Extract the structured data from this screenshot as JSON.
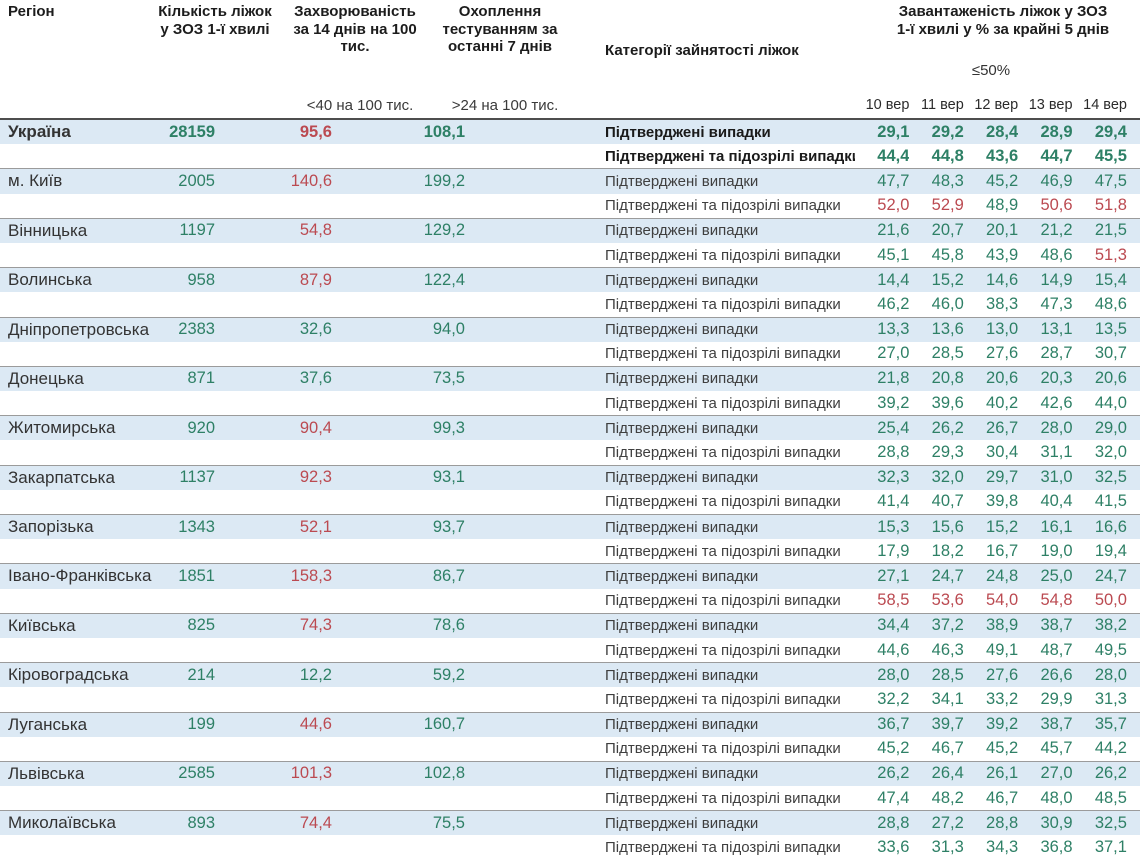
{
  "header": {
    "region": "Регіон",
    "beds": "Кількість ліжок у ЗОЗ 1-ї хвилі",
    "incidence": "Захворюваність за 14 днів на 100 тис.",
    "testing": "Охоплення тестуванням за останні 7 днів",
    "categories": "Категорії зайнятості ліжок",
    "load_line1": "Завантаженість ліжок у ЗОЗ",
    "load_line2": "1-ї хвилі у % за крайні 5 днів",
    "incidence_threshold": "<40 на 100 тис.",
    "testing_threshold": ">24 на 100 тис.",
    "load_threshold": "≤50%",
    "dates": [
      "10 вер",
      "11 вер",
      "12 вер",
      "13 вер",
      "14 вер"
    ]
  },
  "row_labels": {
    "confirmed": "Підтверджені випадки",
    "confirmed_suspected": "Підтверджені та підозрілі випадки"
  },
  "colors": {
    "green": "#2e8066",
    "red": "#bb4a51",
    "band": "#dce9f4"
  },
  "regions": [
    {
      "name": "Україна",
      "bold": true,
      "beds": "28159",
      "incidence": "95,6",
      "incidence_color": "r",
      "testing": "108,1",
      "confirmed": [
        "29,1",
        "29,2",
        "28,4",
        "28,9",
        "29,4"
      ],
      "confirmed_colors": [
        "g",
        "g",
        "g",
        "g",
        "g"
      ],
      "suspected": [
        "44,4",
        "44,8",
        "43,6",
        "44,7",
        "45,5"
      ],
      "suspected_colors": [
        "g",
        "g",
        "g",
        "g",
        "g"
      ]
    },
    {
      "name": "м. Київ",
      "bold": false,
      "beds": "2005",
      "incidence": "140,6",
      "incidence_color": "r",
      "testing": "199,2",
      "confirmed": [
        "47,7",
        "48,3",
        "45,2",
        "46,9",
        "47,5"
      ],
      "confirmed_colors": [
        "g",
        "g",
        "g",
        "g",
        "g"
      ],
      "suspected": [
        "52,0",
        "52,9",
        "48,9",
        "50,6",
        "51,8"
      ],
      "suspected_colors": [
        "r",
        "r",
        "g",
        "r",
        "r"
      ]
    },
    {
      "name": "Вінницька",
      "bold": false,
      "beds": "1197",
      "incidence": "54,8",
      "incidence_color": "r",
      "testing": "129,2",
      "confirmed": [
        "21,6",
        "20,7",
        "20,1",
        "21,2",
        "21,5"
      ],
      "confirmed_colors": [
        "g",
        "g",
        "g",
        "g",
        "g"
      ],
      "suspected": [
        "45,1",
        "45,8",
        "43,9",
        "48,6",
        "51,3"
      ],
      "suspected_colors": [
        "g",
        "g",
        "g",
        "g",
        "r"
      ]
    },
    {
      "name": "Волинська",
      "bold": false,
      "beds": "958",
      "incidence": "87,9",
      "incidence_color": "r",
      "testing": "122,4",
      "confirmed": [
        "14,4",
        "15,2",
        "14,6",
        "14,9",
        "15,4"
      ],
      "confirmed_colors": [
        "g",
        "g",
        "g",
        "g",
        "g"
      ],
      "suspected": [
        "46,2",
        "46,0",
        "38,3",
        "47,3",
        "48,6"
      ],
      "suspected_colors": [
        "g",
        "g",
        "g",
        "g",
        "g"
      ]
    },
    {
      "name": "Дніпропетровська",
      "bold": false,
      "beds": "2383",
      "incidence": "32,6",
      "incidence_color": "g",
      "testing": "94,0",
      "confirmed": [
        "13,3",
        "13,6",
        "13,0",
        "13,1",
        "13,5"
      ],
      "confirmed_colors": [
        "g",
        "g",
        "g",
        "g",
        "g"
      ],
      "suspected": [
        "27,0",
        "28,5",
        "27,6",
        "28,7",
        "30,7"
      ],
      "suspected_colors": [
        "g",
        "g",
        "g",
        "g",
        "g"
      ]
    },
    {
      "name": "Донецька",
      "bold": false,
      "beds": "871",
      "incidence": "37,6",
      "incidence_color": "g",
      "testing": "73,5",
      "confirmed": [
        "21,8",
        "20,8",
        "20,6",
        "20,3",
        "20,6"
      ],
      "confirmed_colors": [
        "g",
        "g",
        "g",
        "g",
        "g"
      ],
      "suspected": [
        "39,2",
        "39,6",
        "40,2",
        "42,6",
        "44,0"
      ],
      "suspected_colors": [
        "g",
        "g",
        "g",
        "g",
        "g"
      ]
    },
    {
      "name": "Житомирська",
      "bold": false,
      "beds": "920",
      "incidence": "90,4",
      "incidence_color": "r",
      "testing": "99,3",
      "confirmed": [
        "25,4",
        "26,2",
        "26,7",
        "28,0",
        "29,0"
      ],
      "confirmed_colors": [
        "g",
        "g",
        "g",
        "g",
        "g"
      ],
      "suspected": [
        "28,8",
        "29,3",
        "30,4",
        "31,1",
        "32,0"
      ],
      "suspected_colors": [
        "g",
        "g",
        "g",
        "g",
        "g"
      ]
    },
    {
      "name": "Закарпатська",
      "bold": false,
      "beds": "1137",
      "incidence": "92,3",
      "incidence_color": "r",
      "testing": "93,1",
      "confirmed": [
        "32,3",
        "32,0",
        "29,7",
        "31,0",
        "32,5"
      ],
      "confirmed_colors": [
        "g",
        "g",
        "g",
        "g",
        "g"
      ],
      "suspected": [
        "41,4",
        "40,7",
        "39,8",
        "40,4",
        "41,5"
      ],
      "suspected_colors": [
        "g",
        "g",
        "g",
        "g",
        "g"
      ]
    },
    {
      "name": "Запорізька",
      "bold": false,
      "beds": "1343",
      "incidence": "52,1",
      "incidence_color": "r",
      "testing": "93,7",
      "confirmed": [
        "15,3",
        "15,6",
        "15,2",
        "16,1",
        "16,6"
      ],
      "confirmed_colors": [
        "g",
        "g",
        "g",
        "g",
        "g"
      ],
      "suspected": [
        "17,9",
        "18,2",
        "16,7",
        "19,0",
        "19,4"
      ],
      "suspected_colors": [
        "g",
        "g",
        "g",
        "g",
        "g"
      ]
    },
    {
      "name": "Івано-Франківська",
      "bold": false,
      "beds": "1851",
      "incidence": "158,3",
      "incidence_color": "r",
      "testing": "86,7",
      "confirmed": [
        "27,1",
        "24,7",
        "24,8",
        "25,0",
        "24,7"
      ],
      "confirmed_colors": [
        "g",
        "g",
        "g",
        "g",
        "g"
      ],
      "suspected": [
        "58,5",
        "53,6",
        "54,0",
        "54,8",
        "50,0"
      ],
      "suspected_colors": [
        "r",
        "r",
        "r",
        "r",
        "r"
      ]
    },
    {
      "name": "Київська",
      "bold": false,
      "beds": "825",
      "incidence": "74,3",
      "incidence_color": "r",
      "testing": "78,6",
      "confirmed": [
        "34,4",
        "37,2",
        "38,9",
        "38,7",
        "38,2"
      ],
      "confirmed_colors": [
        "g",
        "g",
        "g",
        "g",
        "g"
      ],
      "suspected": [
        "44,6",
        "46,3",
        "49,1",
        "48,7",
        "49,5"
      ],
      "suspected_colors": [
        "g",
        "g",
        "g",
        "g",
        "g"
      ]
    },
    {
      "name": "Кіровоградська",
      "bold": false,
      "beds": "214",
      "incidence": "12,2",
      "incidence_color": "g",
      "testing": "59,2",
      "confirmed": [
        "28,0",
        "28,5",
        "27,6",
        "26,6",
        "28,0"
      ],
      "confirmed_colors": [
        "g",
        "g",
        "g",
        "g",
        "g"
      ],
      "suspected": [
        "32,2",
        "34,1",
        "33,2",
        "29,9",
        "31,3"
      ],
      "suspected_colors": [
        "g",
        "g",
        "g",
        "g",
        "g"
      ]
    },
    {
      "name": "Луганська",
      "bold": false,
      "beds": "199",
      "incidence": "44,6",
      "incidence_color": "r",
      "testing": "160,7",
      "confirmed": [
        "36,7",
        "39,7",
        "39,2",
        "38,7",
        "35,7"
      ],
      "confirmed_colors": [
        "g",
        "g",
        "g",
        "g",
        "g"
      ],
      "suspected": [
        "45,2",
        "46,7",
        "45,2",
        "45,7",
        "44,2"
      ],
      "suspected_colors": [
        "g",
        "g",
        "g",
        "g",
        "g"
      ]
    },
    {
      "name": "Львівська",
      "bold": false,
      "beds": "2585",
      "incidence": "101,3",
      "incidence_color": "r",
      "testing": "102,8",
      "confirmed": [
        "26,2",
        "26,4",
        "26,1",
        "27,0",
        "26,2"
      ],
      "confirmed_colors": [
        "g",
        "g",
        "g",
        "g",
        "g"
      ],
      "suspected": [
        "47,4",
        "48,2",
        "46,7",
        "48,0",
        "48,5"
      ],
      "suspected_colors": [
        "g",
        "g",
        "g",
        "g",
        "g"
      ]
    },
    {
      "name": "Миколаївська",
      "bold": false,
      "beds": "893",
      "incidence": "74,4",
      "incidence_color": "r",
      "testing": "75,5",
      "confirmed": [
        "28,8",
        "27,2",
        "28,8",
        "30,9",
        "32,5"
      ],
      "confirmed_colors": [
        "g",
        "g",
        "g",
        "g",
        "g"
      ],
      "suspected": [
        "33,6",
        "31,3",
        "34,3",
        "36,8",
        "37,1"
      ],
      "suspected_colors": [
        "g",
        "g",
        "g",
        "g",
        "g"
      ]
    }
  ]
}
